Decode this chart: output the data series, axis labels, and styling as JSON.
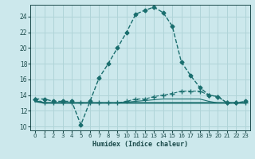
{
  "xlabel": "Humidex (Indice chaleur)",
  "background_color": "#cce8ec",
  "grid_color": "#b0d4d8",
  "line_color": "#1a6e6e",
  "xlim": [
    -0.5,
    23.5
  ],
  "ylim": [
    9.5,
    25.5
  ],
  "yticks": [
    10,
    12,
    14,
    16,
    18,
    20,
    22,
    24
  ],
  "xticks": [
    0,
    1,
    2,
    3,
    4,
    5,
    6,
    7,
    8,
    9,
    10,
    11,
    12,
    13,
    14,
    15,
    16,
    17,
    18,
    19,
    20,
    21,
    22,
    23
  ],
  "series": [
    {
      "x": [
        0,
        1,
        2,
        3,
        4,
        5,
        6,
        7,
        8,
        9,
        10,
        11,
        12,
        13,
        14,
        15,
        16,
        17,
        18,
        19,
        20,
        21,
        22,
        23
      ],
      "y": [
        13.5,
        13.5,
        13.2,
        13.2,
        13.2,
        10.2,
        13.2,
        16.2,
        18.0,
        20.0,
        22.0,
        24.3,
        24.8,
        25.2,
        24.5,
        22.8,
        18.2,
        16.5,
        15.0,
        14.0,
        13.8,
        13.0,
        13.0,
        13.2
      ],
      "marker": "D",
      "markersize": 2.5,
      "linewidth": 1.0,
      "linestyle": "--"
    },
    {
      "x": [
        0,
        1,
        2,
        3,
        4,
        5,
        6,
        7,
        8,
        9,
        10,
        11,
        12,
        13,
        14,
        15,
        16,
        17,
        18,
        19,
        20,
        21,
        22,
        23
      ],
      "y": [
        13.5,
        13.0,
        13.0,
        13.0,
        13.0,
        13.0,
        13.0,
        13.0,
        13.0,
        13.0,
        13.2,
        13.5,
        13.5,
        13.8,
        14.0,
        14.2,
        14.5,
        14.5,
        14.5,
        14.0,
        13.8,
        13.0,
        13.0,
        13.0
      ],
      "marker": "+",
      "markersize": 4,
      "linewidth": 0.8,
      "linestyle": "--"
    },
    {
      "x": [
        0,
        1,
        2,
        3,
        4,
        5,
        6,
        7,
        8,
        9,
        10,
        11,
        12,
        13,
        14,
        15,
        16,
        17,
        18,
        19,
        20,
        21,
        22,
        23
      ],
      "y": [
        13.2,
        13.0,
        13.0,
        13.0,
        13.0,
        13.0,
        13.0,
        13.0,
        13.0,
        13.0,
        13.0,
        13.0,
        13.0,
        13.0,
        13.0,
        13.0,
        13.0,
        13.0,
        13.0,
        13.0,
        13.0,
        13.0,
        13.0,
        13.0
      ],
      "marker": null,
      "markersize": 0,
      "linewidth": 1.5,
      "linestyle": "-"
    },
    {
      "x": [
        0,
        1,
        2,
        3,
        4,
        5,
        6,
        7,
        8,
        9,
        10,
        11,
        12,
        13,
        14,
        15,
        16,
        17,
        18,
        19,
        20,
        21,
        22,
        23
      ],
      "y": [
        13.3,
        13.0,
        13.0,
        13.0,
        13.0,
        13.0,
        13.0,
        13.0,
        13.0,
        13.0,
        13.1,
        13.2,
        13.3,
        13.4,
        13.5,
        13.5,
        13.5,
        13.5,
        13.5,
        13.2,
        13.0,
        13.0,
        13.0,
        13.0
      ],
      "marker": null,
      "markersize": 0,
      "linewidth": 0.8,
      "linestyle": "-"
    }
  ]
}
